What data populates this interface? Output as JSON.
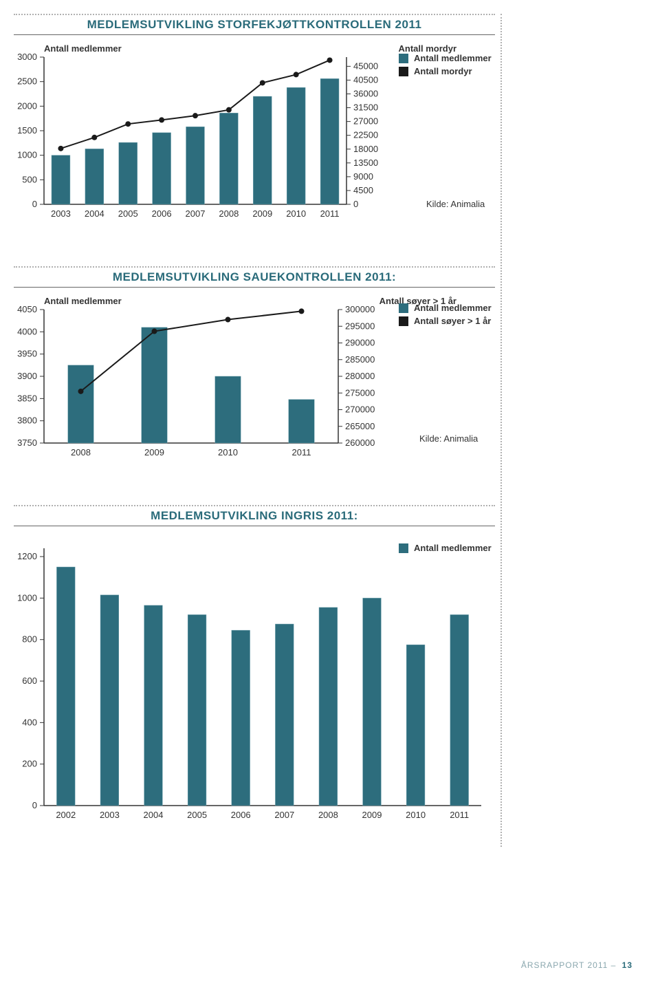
{
  "colors": {
    "bar": "#2d6d7d",
    "bar_stroke": "#6ea0ad",
    "line_series": "#1a1a1a",
    "axis": "#333333",
    "title": "#2a6b7a",
    "dotted": "#b0b0b0",
    "background": "#ffffff"
  },
  "chart1": {
    "title": "MEDLEMSUTVIKLING STORFEKJØTTKONTROLLEN 2011",
    "left_axis_label": "Antall medlemmer",
    "right_axis_label": "Antall mordyr",
    "categories": [
      "2003",
      "2004",
      "2005",
      "2006",
      "2007",
      "2008",
      "2009",
      "2010",
      "2011"
    ],
    "bars": [
      1000,
      1130,
      1260,
      1460,
      1580,
      1860,
      2200,
      2380,
      2560
    ],
    "left_ticks": [
      0,
      500,
      1000,
      1500,
      2000,
      2500,
      3000
    ],
    "left_ylim": [
      0,
      3000
    ],
    "line": [
      18200,
      21800,
      26200,
      27500,
      28900,
      30800,
      39600,
      42300,
      47000
    ],
    "right_ticks": [
      0,
      4500,
      9000,
      13500,
      18000,
      22500,
      27000,
      31500,
      36000,
      40500,
      45000
    ],
    "right_ylim": [
      0,
      48000
    ],
    "legend": [
      {
        "label": "Antall medlemmer",
        "swatch": "#2d6d7d"
      },
      {
        "label": "Antall mordyr",
        "swatch": "#1a1a1a"
      }
    ],
    "source": "Kilde: Animalia",
    "type": "bar+line",
    "bar_width": 0.55,
    "title_fontsize": 17
  },
  "chart2": {
    "title": "MEDLEMSUTVIKLING SAUEKONTROLLEN 2011:",
    "left_axis_label": "Antall medlemmer",
    "right_axis_label": "Antall søyer > 1 år",
    "categories": [
      "2008",
      "2009",
      "2010",
      "2011"
    ],
    "bars": [
      3925,
      4010,
      3900,
      3848
    ],
    "left_ticks": [
      3750,
      3800,
      3850,
      3900,
      3950,
      4000,
      4050
    ],
    "left_ylim": [
      3750,
      4050
    ],
    "line": [
      275500,
      293500,
      297000,
      299500
    ],
    "right_ticks": [
      260000,
      265000,
      270000,
      275000,
      280000,
      285000,
      290000,
      295000,
      300000
    ],
    "right_ylim": [
      260000,
      300000
    ],
    "legend": [
      {
        "label": "Antall medlemmer",
        "swatch": "#2d6d7d"
      },
      {
        "label": "Antall søyer > 1 år",
        "swatch": "#1a1a1a"
      }
    ],
    "source": "Kilde: Animalia",
    "type": "bar+line",
    "bar_width": 0.35,
    "title_fontsize": 17
  },
  "chart3": {
    "title": "MEDLEMSUTVIKLING INGRIS 2011:",
    "categories": [
      "2002",
      "2003",
      "2004",
      "2005",
      "2006",
      "2007",
      "2008",
      "2009",
      "2010",
      "2011"
    ],
    "bars": [
      1150,
      1015,
      965,
      920,
      845,
      875,
      955,
      1000,
      775,
      920
    ],
    "left_ticks": [
      0,
      200,
      400,
      600,
      800,
      1000,
      1200
    ],
    "left_ylim": [
      0,
      1240
    ],
    "legend": [
      {
        "label": "Antall medlemmer",
        "swatch": "#2d6d7d"
      }
    ],
    "type": "bar",
    "bar_width": 0.42,
    "title_fontsize": 17
  },
  "footer": {
    "text": "ÅRSRAPPORT 2011 –",
    "page": "13"
  }
}
